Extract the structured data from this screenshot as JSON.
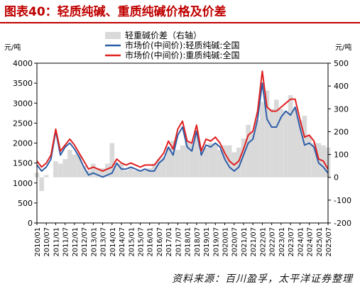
{
  "header": {
    "title": "图表40：轻质纯碱、重质纯碱价格及价差",
    "source": "资料来源：百川盈孚，太平洋证券整理"
  },
  "chart_data": {
    "type": "line",
    "title": "",
    "left_axis": {
      "unit": "元/吨",
      "ylim": [
        0,
        4000
      ],
      "ticks": [
        0,
        500,
        1000,
        1500,
        2000,
        2500,
        3000,
        3500,
        4000
      ]
    },
    "right_axis": {
      "unit": "元/吨",
      "ylim": [
        -200,
        500
      ],
      "ticks": [
        -200,
        -100,
        0,
        100,
        200,
        300,
        400,
        500
      ]
    },
    "x_ticks": [
      "2010/01",
      "2010/07",
      "2011/01",
      "2011/07",
      "2012/01",
      "2012/07",
      "2013/01",
      "2013/07",
      "2014/01",
      "2014/07",
      "2015/01",
      "2015/07",
      "2016/01",
      "2016/07",
      "2017/01",
      "2017/07",
      "2018/01",
      "2018/07",
      "2019/01",
      "2019/07",
      "2020/01",
      "2020/07",
      "2021/01",
      "2021/07",
      "2022/01",
      "2022/07",
      "2023/01",
      "2023/07",
      "2024/01",
      "2024/07",
      "2025/01",
      "2025/07"
    ],
    "legend_placement": "top-center",
    "grid": false,
    "x_dates": [
      "2010/01",
      "2010/04",
      "2010/07",
      "2010/10",
      "2011/01",
      "2011/04",
      "2011/07",
      "2011/10",
      "2012/01",
      "2012/04",
      "2012/07",
      "2012/10",
      "2013/01",
      "2013/04",
      "2013/07",
      "2013/10",
      "2014/01",
      "2014/04",
      "2014/07",
      "2014/10",
      "2015/01",
      "2015/04",
      "2015/07",
      "2015/10",
      "2016/01",
      "2016/04",
      "2016/07",
      "2016/10",
      "2017/01",
      "2017/04",
      "2017/07",
      "2017/10",
      "2018/01",
      "2018/04",
      "2018/07",
      "2018/10",
      "2019/01",
      "2019/04",
      "2019/07",
      "2019/10",
      "2020/01",
      "2020/04",
      "2020/07",
      "2020/10",
      "2021/01",
      "2021/04",
      "2021/07",
      "2021/10",
      "2022/01",
      "2022/04",
      "2022/07",
      "2022/10",
      "2023/01",
      "2023/04",
      "2023/07",
      "2023/10",
      "2024/01",
      "2024/04",
      "2024/07",
      "2024/10",
      "2025/01",
      "2025/04",
      "2025/07"
    ],
    "series": [
      {
        "name": "轻重碱价差（右轴）",
        "type": "area",
        "axis": "right",
        "color": "#d9d9d9",
        "values": [
          20,
          -60,
          10,
          0,
          70,
          60,
          80,
          120,
          100,
          100,
          50,
          30,
          60,
          40,
          40,
          60,
          150,
          60,
          60,
          30,
          40,
          30,
          30,
          30,
          40,
          60,
          80,
          90,
          130,
          160,
          120,
          140,
          160,
          150,
          200,
          110,
          130,
          150,
          150,
          120,
          140,
          140,
          110,
          130,
          170,
          230,
          200,
          250,
          330,
          380,
          300,
          340,
          300,
          290,
          360,
          300,
          250,
          270,
          180,
          150,
          150,
          140,
          130
        ]
      },
      {
        "name": "市场价(中间价):轻质纯碱:全国",
        "type": "line",
        "axis": "left",
        "color": "#2e5ea8",
        "values": [
          1450,
          1300,
          1400,
          1600,
          2300,
          1700,
          1900,
          2000,
          1850,
          1650,
          1400,
          1200,
          1250,
          1200,
          1150,
          1200,
          1250,
          1500,
          1350,
          1350,
          1400,
          1350,
          1300,
          1350,
          1300,
          1300,
          1500,
          1600,
          1900,
          1700,
          2200,
          2400,
          1900,
          1800,
          2300,
          1700,
          1950,
          1900,
          2000,
          1900,
          1600,
          1400,
          1300,
          1400,
          1700,
          2000,
          2100,
          2600,
          3500,
          2600,
          2400,
          2400,
          2650,
          2800,
          2700,
          2900,
          2400,
          1950,
          2000,
          1900,
          1500,
          1400,
          1250
        ]
      },
      {
        "name": "市场价(中间价):重质纯碱:全国",
        "type": "line",
        "axis": "left",
        "color": "#e02020",
        "values": [
          1550,
          1400,
          1500,
          1700,
          2350,
          1800,
          1950,
          2100,
          1950,
          1750,
          1550,
          1350,
          1400,
          1350,
          1300,
          1350,
          1400,
          1600,
          1500,
          1450,
          1500,
          1450,
          1400,
          1450,
          1450,
          1450,
          1600,
          1750,
          2050,
          1850,
          2350,
          2550,
          2050,
          2000,
          2450,
          1800,
          2100,
          2050,
          2150,
          2000,
          1750,
          1550,
          1450,
          1550,
          1850,
          2200,
          2300,
          2800,
          3800,
          2900,
          2800,
          2800,
          2900,
          3000,
          3100,
          3100,
          2600,
          2150,
          2200,
          2050,
          1600,
          1550,
          1350
        ]
      }
    ]
  }
}
